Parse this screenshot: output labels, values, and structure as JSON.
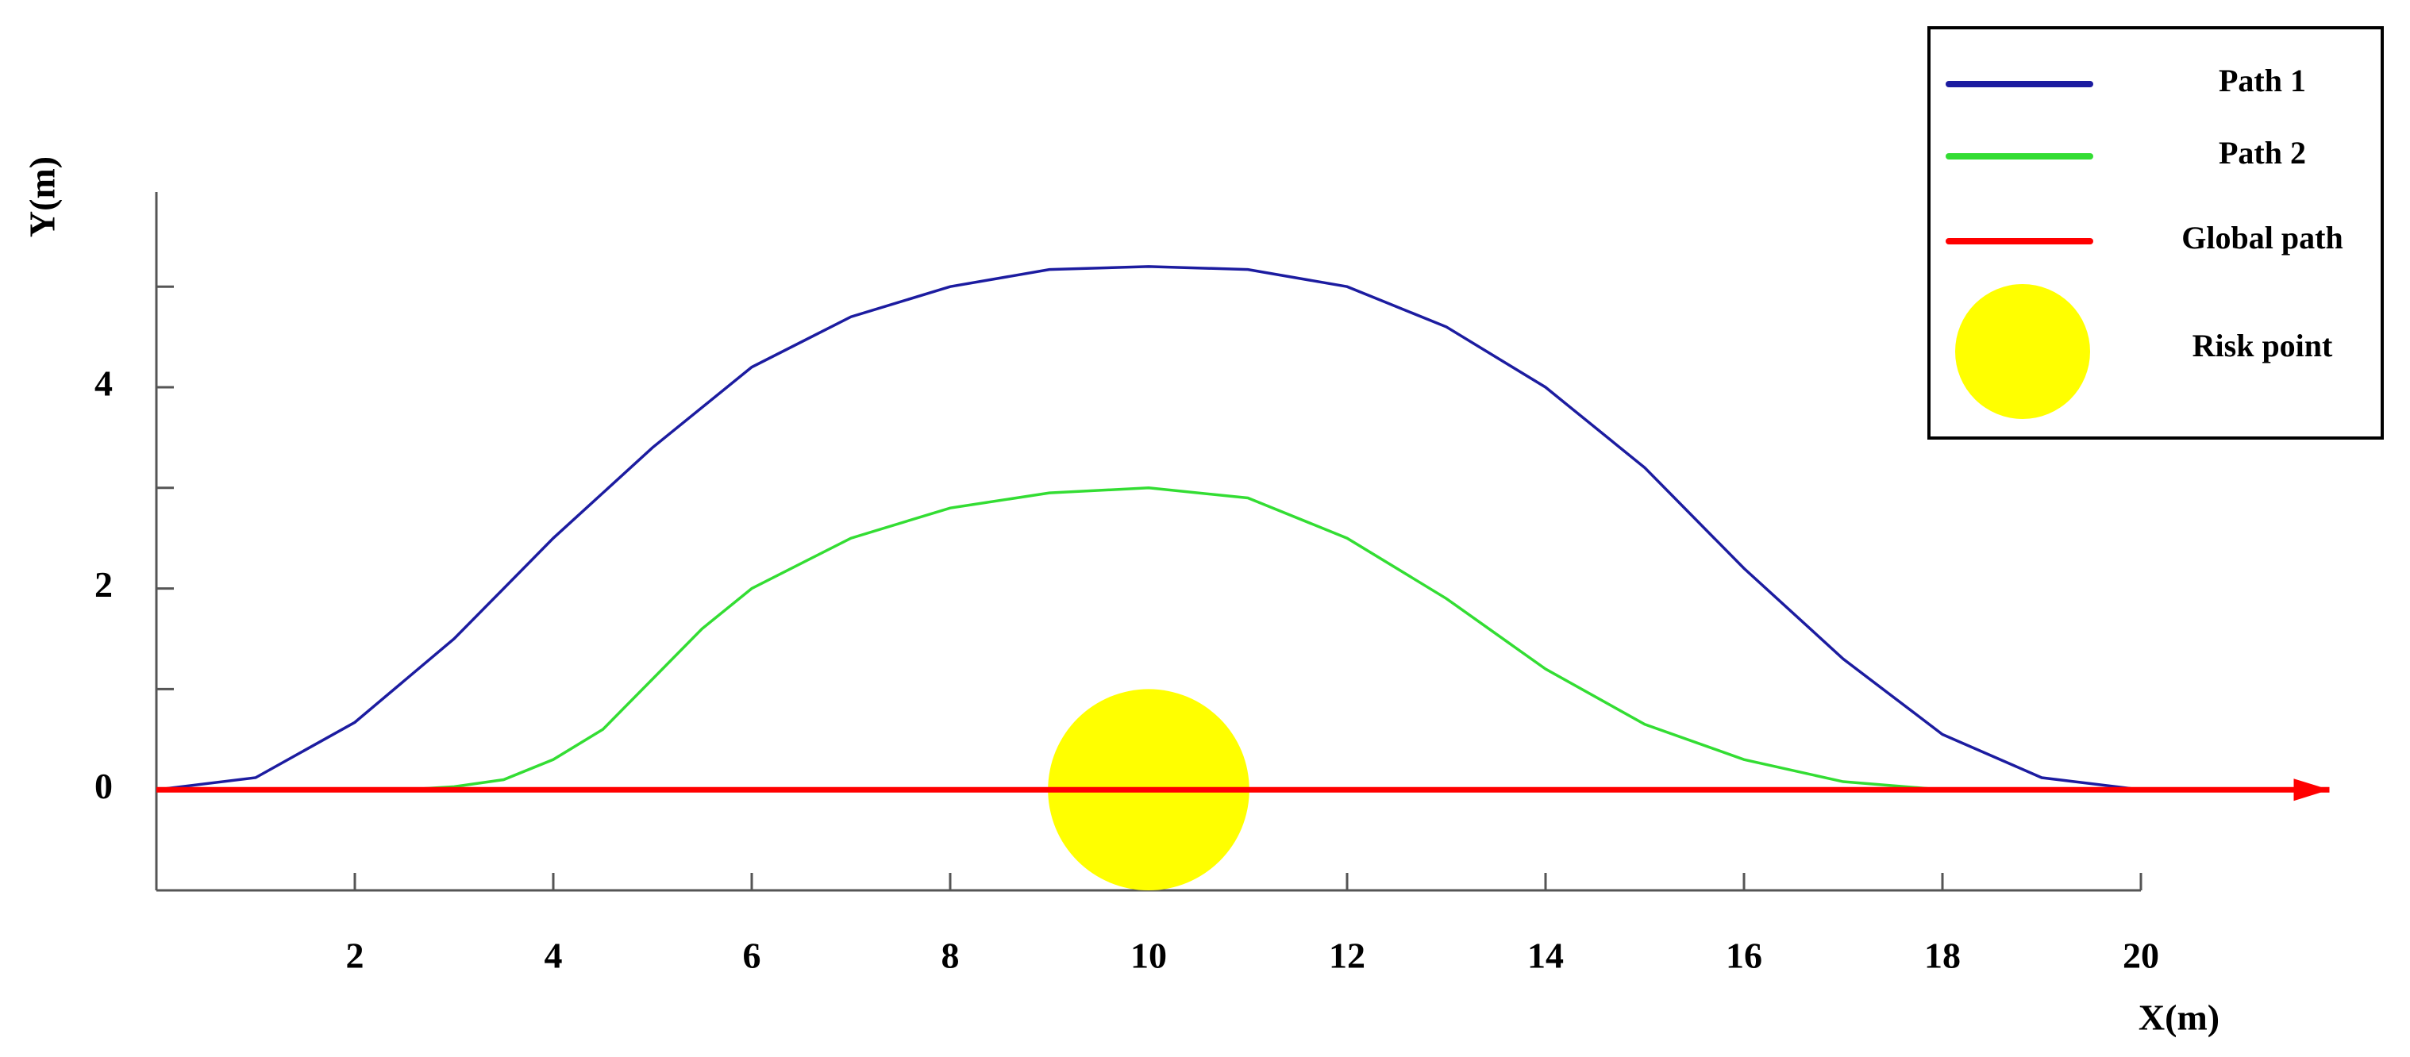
{
  "chart_data": {
    "type": "line",
    "x_label": "X(m)",
    "y_label": "Y(m)",
    "xlim": [
      0,
      20
    ],
    "ylim": [
      -1,
      5.94
    ],
    "xticks": [
      2,
      4,
      6,
      8,
      10,
      12,
      14,
      16,
      18,
      20
    ],
    "yticks": [
      0,
      2,
      4
    ],
    "minor_yticks": [
      -1,
      1,
      3,
      5
    ],
    "legend": "upper right",
    "series": [
      {
        "name": "Path 1",
        "color": "#1c1ca0",
        "x": [
          0,
          1,
          2,
          3,
          4,
          5,
          6,
          7,
          8,
          9,
          10,
          11,
          12,
          13,
          14,
          15,
          16,
          17,
          18,
          19,
          20
        ],
        "values": [
          0,
          0.12,
          0.67,
          1.5,
          2.5,
          3.4,
          4.2,
          4.7,
          5.0,
          5.17,
          5.2,
          5.17,
          5.0,
          4.6,
          4.0,
          3.2,
          2.2,
          1.3,
          0.55,
          0.12,
          0
        ]
      },
      {
        "name": "Path 2",
        "color": "#33dd33",
        "x": [
          2.5,
          3,
          3.5,
          4,
          4.5,
          5,
          5.5,
          6,
          7,
          8,
          9,
          10,
          11,
          12,
          13,
          14,
          15,
          16,
          17,
          18
        ],
        "values": [
          0,
          0.03,
          0.1,
          0.3,
          0.6,
          1.1,
          1.6,
          2.0,
          2.5,
          2.8,
          2.95,
          3.0,
          2.9,
          2.5,
          1.9,
          1.2,
          0.65,
          0.3,
          0.08,
          0
        ]
      },
      {
        "name": "Global path",
        "color": "#ff0000",
        "arrow": true,
        "x": [
          0,
          21.9
        ],
        "values": [
          0,
          0
        ]
      }
    ],
    "risk_point": {
      "name": "Risk point",
      "color": "#ffff00",
      "x": 10,
      "y": 0,
      "radius": 1
    }
  }
}
